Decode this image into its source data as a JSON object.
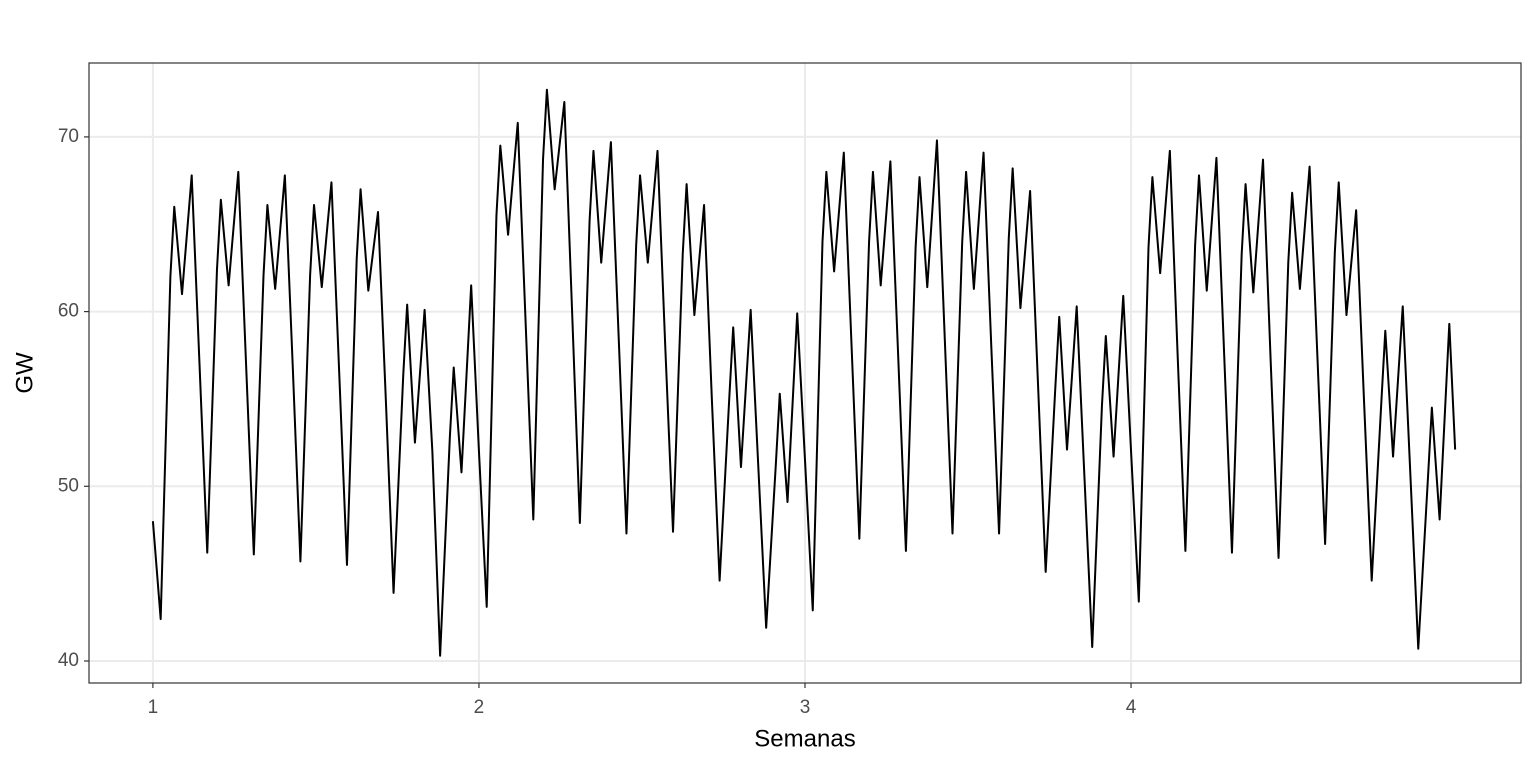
{
  "chart_data": {
    "type": "line",
    "x_label": "Semanas",
    "y_label": "GW",
    "xlim": [
      0.804,
      5.196
    ],
    "ylim": [
      38.74,
      74.23
    ],
    "xticks": [
      1,
      2,
      3,
      4
    ],
    "yticks": [
      40,
      50,
      60,
      70
    ],
    "grid": true,
    "series": [
      {
        "color": "#000000",
        "x": [
          1.0,
          1.0238,
          1.0536,
          1.0655,
          1.0893,
          1.119,
          1.1429,
          1.1667,
          1.1965,
          1.2084,
          1.2322,
          1.2619,
          1.2857,
          1.3095,
          1.3393,
          1.3512,
          1.375,
          1.4047,
          1.4286,
          1.4524,
          1.4822,
          1.4941,
          1.5179,
          1.5476,
          1.5714,
          1.5952,
          1.625,
          1.6369,
          1.6607,
          1.6904,
          1.7143,
          1.7381,
          1.7679,
          1.7798,
          1.8036,
          1.8333,
          1.8571,
          1.8809,
          1.9107,
          1.9226,
          1.9464,
          1.9761,
          2.0,
          2.0238,
          2.0536,
          2.0655,
          2.0893,
          2.119,
          2.1429,
          2.1667,
          2.1965,
          2.2084,
          2.2322,
          2.2619,
          2.2857,
          2.3095,
          2.3393,
          2.3512,
          2.375,
          2.4047,
          2.4286,
          2.4524,
          2.4822,
          2.4941,
          2.5179,
          2.5476,
          2.5714,
          2.5952,
          2.625,
          2.6369,
          2.6607,
          2.6904,
          2.7143,
          2.7381,
          2.7679,
          2.7798,
          2.8036,
          2.8333,
          2.8571,
          2.8809,
          2.9107,
          2.9226,
          2.9464,
          2.9761,
          3.0,
          3.0238,
          3.0536,
          3.0655,
          3.0893,
          3.119,
          3.1429,
          3.1667,
          3.1965,
          3.2084,
          3.2322,
          3.2619,
          3.2857,
          3.3095,
          3.3393,
          3.3512,
          3.375,
          3.4047,
          3.4286,
          3.4524,
          3.4822,
          3.4941,
          3.5179,
          3.5476,
          3.5714,
          3.5952,
          3.625,
          3.6369,
          3.6607,
          3.6904,
          3.7143,
          3.7381,
          3.7679,
          3.7798,
          3.8036,
          3.8333,
          3.8571,
          3.8809,
          3.9107,
          3.9226,
          3.9464,
          3.9761,
          4.0,
          4.0238,
          4.0536,
          4.0655,
          4.0893,
          4.119,
          4.1429,
          4.1667,
          4.1965,
          4.2084,
          4.2322,
          4.2619,
          4.2857,
          4.3095,
          4.3393,
          4.3512,
          4.375,
          4.4047,
          4.4286,
          4.4524,
          4.4822,
          4.4941,
          4.5179,
          4.5476,
          4.5714,
          4.5952,
          4.625,
          4.6369,
          4.6607,
          4.6904,
          4.7143,
          4.7381,
          4.7679,
          4.7798,
          4.8036,
          4.8333,
          4.8571,
          4.8809,
          4.9107,
          4.9226,
          4.9464,
          4.9761,
          4.994
        ],
        "values": [
          48,
          42.4,
          62,
          66,
          61,
          67.8,
          57,
          46.2,
          62.4,
          66.4,
          61.5,
          68,
          57,
          46.1,
          62.1,
          66.1,
          61.3,
          67.8,
          57,
          45.7,
          62.1,
          66.1,
          61.4,
          67.4,
          56.5,
          45.5,
          63,
          67,
          61.2,
          65.7,
          55,
          43.9,
          56.4,
          60.4,
          52.5,
          60.1,
          52,
          40.3,
          52.8,
          56.8,
          50.8,
          61.5,
          52,
          43.1,
          65.5,
          69.5,
          64.4,
          70.8,
          59.5,
          48.1,
          68.7,
          72.7,
          67,
          72,
          60,
          47.9,
          65.2,
          69.2,
          62.8,
          69.7,
          58.5,
          47.3,
          63.8,
          67.8,
          62.8,
          69.2,
          58,
          47.4,
          63.3,
          67.3,
          59.8,
          66.1,
          55,
          44.6,
          55.1,
          59.1,
          51.1,
          60.1,
          51,
          41.9,
          51.3,
          55.3,
          49.1,
          59.9,
          51.5,
          42.9,
          64,
          68,
          62.3,
          69.1,
          58,
          47,
          64,
          68,
          61.5,
          68.6,
          57.5,
          46.3,
          63.7,
          67.7,
          61.4,
          69.8,
          58.5,
          47.3,
          64,
          68,
          61.3,
          69.1,
          58,
          47.3,
          64.2,
          68.2,
          60.2,
          66.9,
          56,
          45.1,
          55.7,
          59.7,
          52.1,
          60.3,
          50.5,
          40.8,
          54.6,
          58.6,
          51.7,
          60.9,
          52,
          43.4,
          63.7,
          67.7,
          62.2,
          69.2,
          57.5,
          46.3,
          63.8,
          67.8,
          61.2,
          68.8,
          57.5,
          46.2,
          63.3,
          67.3,
          61.1,
          68.7,
          57,
          45.9,
          62.8,
          66.8,
          61.3,
          68.3,
          57.5,
          46.7,
          63.4,
          67.4,
          59.8,
          65.8,
          55,
          44.6,
          54.9,
          58.9,
          51.7,
          60.3,
          50.5,
          40.7,
          50.5,
          54.5,
          48.1,
          59.3,
          52.1
        ]
      }
    ]
  }
}
